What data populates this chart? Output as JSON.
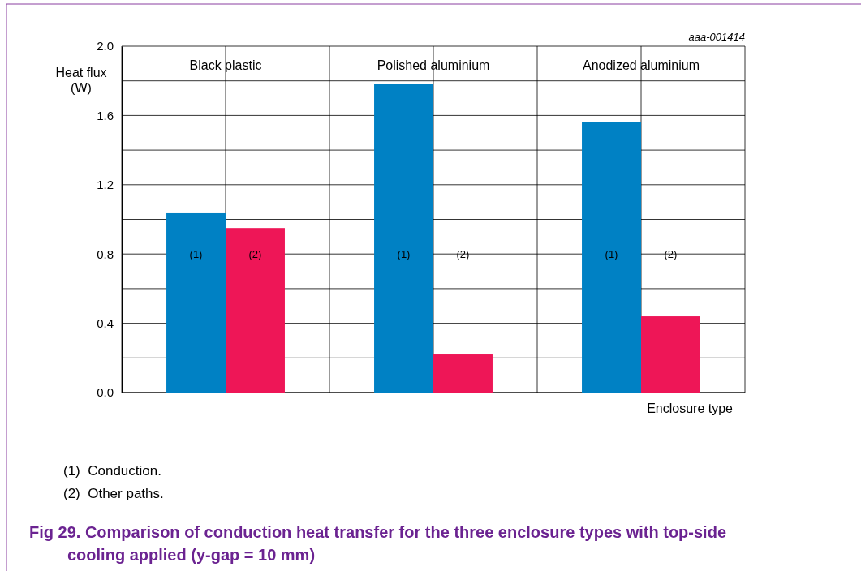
{
  "chart_data": {
    "type": "bar",
    "title": "Fig 29. Comparison of conduction heat transfer for the three enclosure types with top-side cooling applied (y-gap = 10 mm)",
    "xlabel": "Enclosure type",
    "ylabel": "Heat flux (W)",
    "categories": [
      "Black plastic",
      "Polished aluminium",
      "Anodized aluminium"
    ],
    "series": [
      {
        "name": "(1)",
        "color": "#0081c4",
        "values": [
          1.04,
          1.78,
          1.56
        ]
      },
      {
        "name": "(2)",
        "color": "#ee1657",
        "values": [
          0.95,
          0.22,
          0.44
        ]
      }
    ],
    "ylim": [
      0,
      2
    ],
    "yticks": [
      {
        "value": 0,
        "label": "0.0"
      },
      {
        "value": 0.2,
        "label": null
      },
      {
        "value": 0.4,
        "label": "0.4"
      },
      {
        "value": 0.6,
        "label": null
      },
      {
        "value": 0.8,
        "label": "0.8"
      },
      {
        "value": 1.0,
        "label": null
      },
      {
        "value": 1.2,
        "label": "1.2"
      },
      {
        "value": 1.4,
        "label": null
      },
      {
        "value": 1.6,
        "label": "1.6"
      },
      {
        "value": 1.8,
        "label": null
      },
      {
        "value": 2.0,
        "label": "2.0"
      }
    ],
    "grid": true,
    "annotations": [
      "aaa-001414",
      "(1)  Conduction.",
      "(2)  Other paths."
    ]
  }
}
